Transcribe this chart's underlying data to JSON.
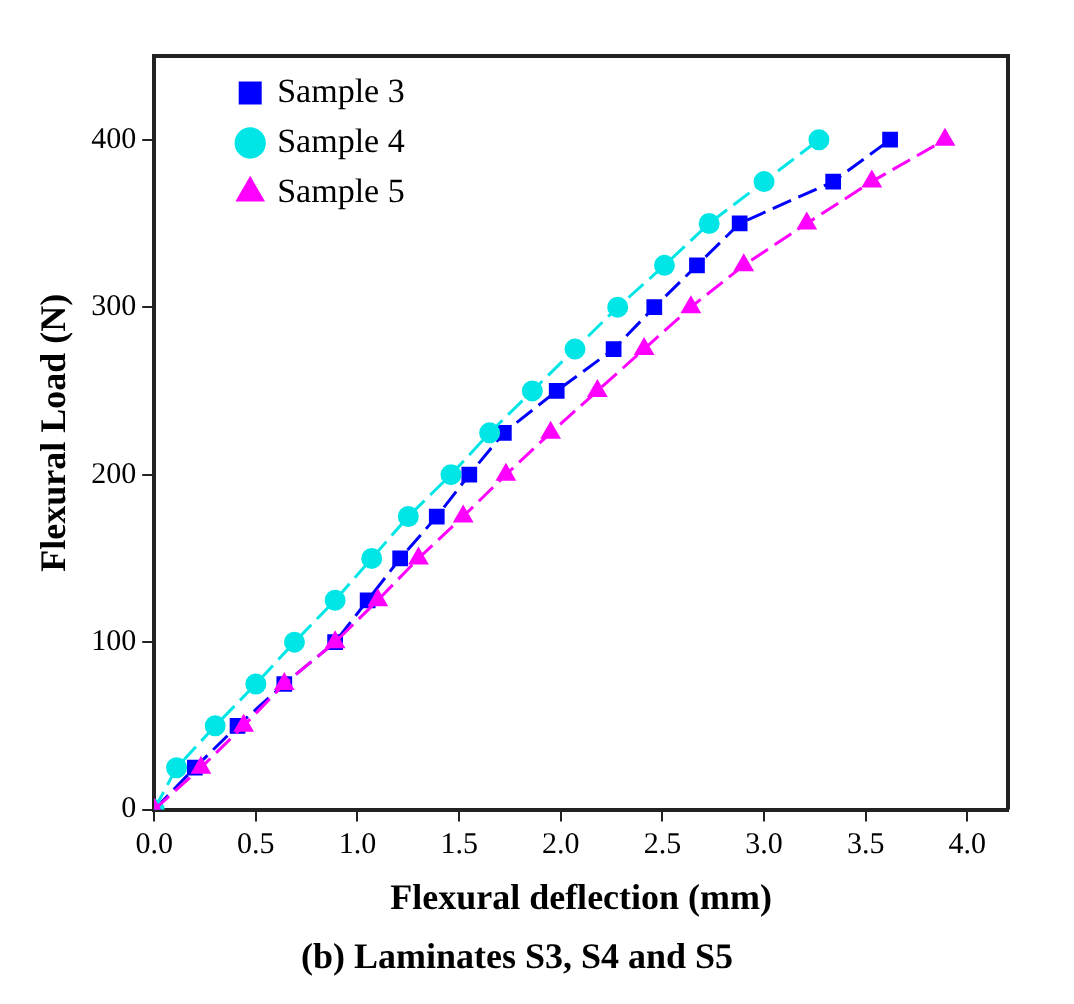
{
  "chart_data": {
    "type": "line",
    "title": "(b) Laminates S3, S4 and S5",
    "xlabel": "Flexural deflection (mm)",
    "ylabel": "Flexural Load (N)",
    "xlim": [
      0,
      4.2
    ],
    "xticks": [
      {
        "value": 0,
        "label": "0.0"
      },
      0.5,
      {
        "value": 1,
        "label": "1.0"
      },
      1.5,
      {
        "value": 2,
        "label": "2.0"
      },
      2.5,
      {
        "value": 3,
        "label": "3.0"
      },
      3.5,
      {
        "value": 4,
        "label": "4.0"
      }
    ],
    "ylim": [
      0,
      450
    ],
    "yticks": [
      0,
      100,
      200,
      300,
      400
    ],
    "grid": false,
    "legend": "top left",
    "line_style": "dashed",
    "series": [
      {
        "name": "Sample 3",
        "color": "#0000ff",
        "marker": "square",
        "x": [
          0,
          0.2,
          0.41,
          0.64,
          0.89,
          1.05,
          1.21,
          1.39,
          1.55,
          1.72,
          1.98,
          2.26,
          2.46,
          2.67,
          2.88,
          3.34,
          3.62
        ],
        "values": [
          0,
          25,
          50,
          75,
          100,
          125,
          150,
          175,
          200,
          225,
          250,
          275,
          300,
          325,
          350,
          375,
          400
        ]
      },
      {
        "name": "Sample 4",
        "color": "#00e5e5",
        "marker": "circle",
        "x": [
          0,
          0.11,
          0.3,
          0.5,
          0.69,
          0.89,
          1.07,
          1.25,
          1.46,
          1.65,
          1.86,
          2.07,
          2.28,
          2.51,
          2.73,
          3.0,
          3.27
        ],
        "values": [
          0,
          25,
          50,
          75,
          100,
          125,
          150,
          175,
          200,
          225,
          250,
          275,
          300,
          325,
          350,
          375,
          400
        ]
      },
      {
        "name": "Sample 5",
        "color": "#ff00ff",
        "marker": "triangle",
        "x": [
          0,
          0.23,
          0.44,
          0.64,
          0.89,
          1.1,
          1.3,
          1.52,
          1.73,
          1.95,
          2.18,
          2.41,
          2.64,
          2.9,
          3.21,
          3.53,
          3.89
        ],
        "values": [
          0,
          25,
          50,
          75,
          100,
          125,
          150,
          175,
          200,
          225,
          250,
          275,
          300,
          325,
          350,
          375,
          400
        ]
      }
    ]
  }
}
